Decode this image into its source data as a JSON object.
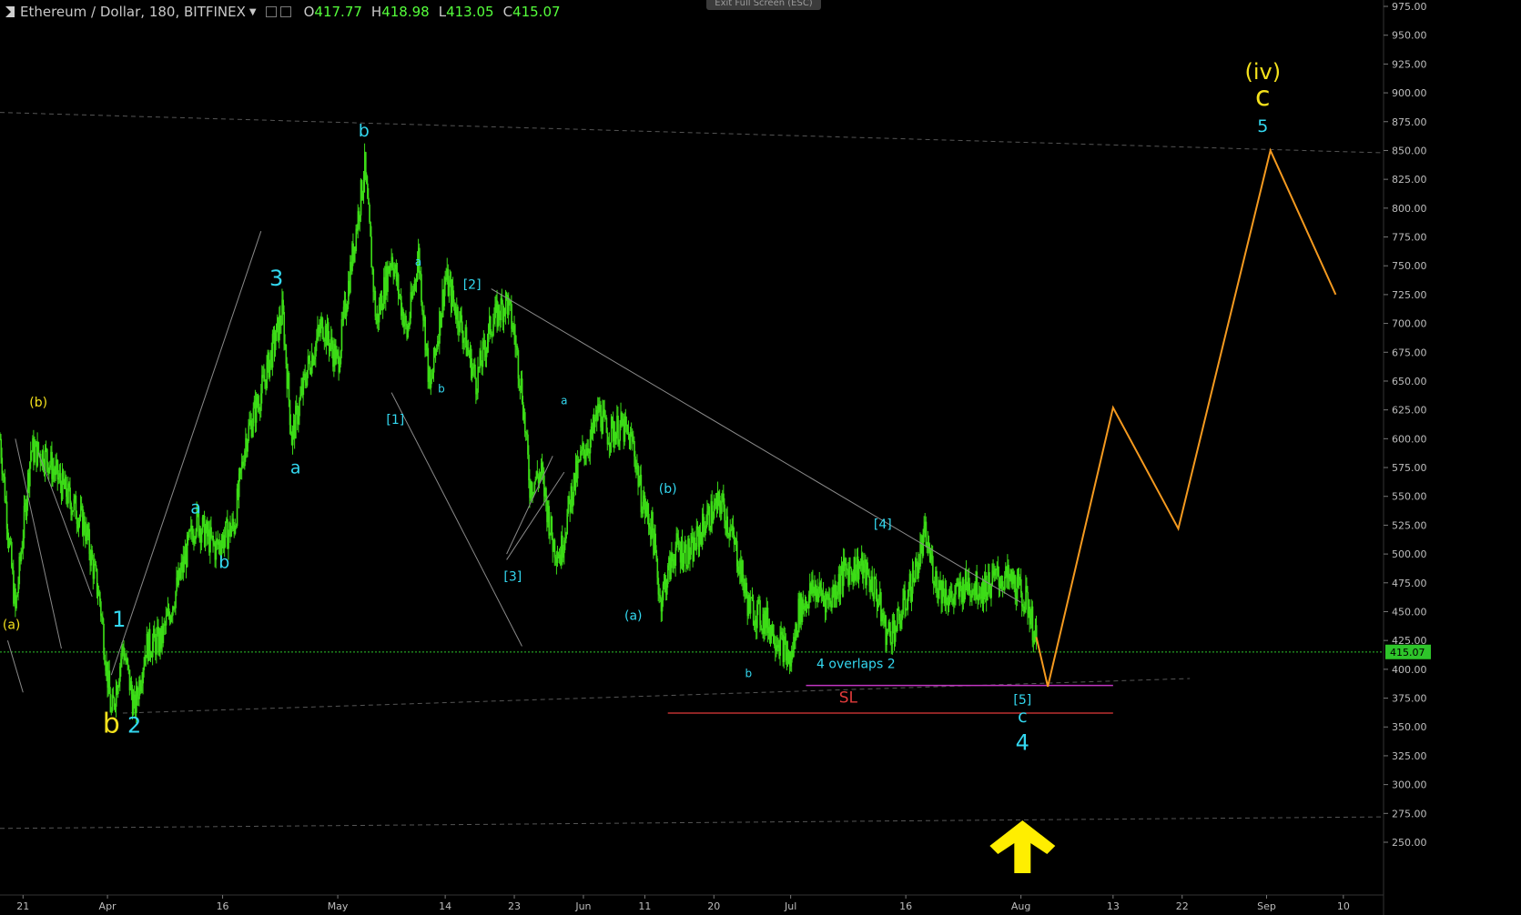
{
  "header": {
    "symbol": "Ethereum / Dollar, 180, BITFINEX",
    "open_label": "O",
    "open": "417.77",
    "high_label": "H",
    "high": "418.98",
    "low_label": "L",
    "low": "413.05",
    "close_label": "C",
    "close": "415.07"
  },
  "exit_fullscreen_label": "Exit Full Screen (ESC)",
  "colors": {
    "background": "#000000",
    "candles": "#3cdc17",
    "wave_cyan": "#33d8f0",
    "wave_yellow": "#f4e11c",
    "projection": "#f59a1f",
    "trendline": "#8a8a8a",
    "stop_loss": "#e23b3b",
    "overlap": "#c236c2",
    "price_line": "#2ec52a"
  },
  "chart_data": {
    "type": "candlestick",
    "y_ticks": [
      "975.00",
      "950.00",
      "925.00",
      "900.00",
      "875.00",
      "850.00",
      "825.00",
      "800.00",
      "775.00",
      "750.00",
      "725.00",
      "700.00",
      "675.00",
      "650.00",
      "625.00",
      "600.00",
      "575.00",
      "550.00",
      "525.00",
      "500.00",
      "475.00",
      "450.00",
      "425.00",
      "400.00",
      "375.00",
      "350.00",
      "325.00",
      "300.00",
      "275.00",
      "250.00"
    ],
    "ylim": [
      250,
      975
    ],
    "x_ticks": [
      "21",
      "Apr",
      "16",
      "May",
      "14",
      "23",
      "Jun",
      "11",
      "20",
      "Jul",
      "16",
      "Aug",
      "13",
      "22",
      "Sep",
      "10"
    ],
    "x_tick_days": [
      0,
      11,
      26,
      41,
      55,
      64,
      73,
      81,
      90,
      100,
      115,
      130,
      142,
      151,
      162,
      172
    ],
    "xlim": [
      -3,
      177
    ],
    "current_price": "415.07",
    "price_path": [
      [
        -3,
        600
      ],
      [
        -1,
        450
      ],
      [
        1,
        590
      ],
      [
        3,
        585
      ],
      [
        5,
        560
      ],
      [
        8,
        525
      ],
      [
        10,
        460
      ],
      [
        11.5,
        360
      ],
      [
        13,
        420
      ],
      [
        14.5,
        365
      ],
      [
        16,
        420
      ],
      [
        18,
        425
      ],
      [
        20,
        470
      ],
      [
        22.5,
        530
      ],
      [
        25,
        505
      ],
      [
        27.5,
        525
      ],
      [
        29,
        600
      ],
      [
        31,
        640
      ],
      [
        33.8,
        710
      ],
      [
        35,
        600
      ],
      [
        37,
        660
      ],
      [
        39,
        700
      ],
      [
        41,
        665
      ],
      [
        42.5,
        740
      ],
      [
        44.5,
        835
      ],
      [
        46,
        700
      ],
      [
        48,
        760
      ],
      [
        50,
        690
      ],
      [
        51.5,
        760
      ],
      [
        53,
        640
      ],
      [
        55,
        740
      ],
      [
        57,
        700
      ],
      [
        59,
        650
      ],
      [
        61,
        700
      ],
      [
        63,
        720
      ],
      [
        64,
        690
      ],
      [
        65,
        640
      ],
      [
        66,
        560
      ],
      [
        67.5,
        570
      ],
      [
        69,
        510
      ],
      [
        70,
        500
      ],
      [
        71.5,
        555
      ],
      [
        73,
        590
      ],
      [
        74,
        600
      ],
      [
        75,
        625
      ],
      [
        76,
        605
      ],
      [
        78,
        610
      ],
      [
        79.5,
        595
      ],
      [
        80.5,
        550
      ],
      [
        82,
        520
      ],
      [
        83,
        460
      ],
      [
        85,
        505
      ],
      [
        87,
        500
      ],
      [
        89,
        530
      ],
      [
        91,
        545
      ],
      [
        93,
        500
      ],
      [
        94.5,
        455
      ],
      [
        97,
        440
      ],
      [
        99,
        420
      ],
      [
        100,
        405
      ],
      [
        101,
        450
      ],
      [
        103,
        470
      ],
      [
        105,
        460
      ],
      [
        107,
        485
      ],
      [
        109,
        490
      ],
      [
        111,
        470
      ],
      [
        112.5,
        430
      ],
      [
        114,
        440
      ],
      [
        116,
        480
      ],
      [
        117.5,
        515
      ],
      [
        119,
        475
      ],
      [
        121,
        460
      ],
      [
        123,
        475
      ],
      [
        125,
        470
      ],
      [
        127,
        480
      ],
      [
        129,
        475
      ],
      [
        131,
        455
      ],
      [
        132,
        420
      ]
    ],
    "projection": [
      [
        132,
        428
      ],
      [
        133.5,
        385
      ],
      [
        142,
        627
      ],
      [
        150.5,
        522
      ],
      [
        162.5,
        850
      ],
      [
        171,
        725
      ]
    ],
    "wave_labels": [
      {
        "text": "(b)",
        "day": 2,
        "price": 628,
        "color": "yellow",
        "size": "s"
      },
      {
        "text": "(a)",
        "day": -1.5,
        "price": 435,
        "color": "yellow",
        "size": "s"
      },
      {
        "text": "b",
        "day": 11.5,
        "price": 345,
        "color": "yellow",
        "size": "xl"
      },
      {
        "text": "1",
        "day": 12.5,
        "price": 437,
        "color": "cyan",
        "size": "l"
      },
      {
        "text": "2",
        "day": 14.5,
        "price": 345,
        "color": "cyan",
        "size": "l"
      },
      {
        "text": "a",
        "day": 22.5,
        "price": 535,
        "color": "cyan",
        "size": "m"
      },
      {
        "text": "b",
        "day": 26.2,
        "price": 488,
        "color": "cyan",
        "size": "m"
      },
      {
        "text": "3",
        "day": 33,
        "price": 733,
        "color": "cyan",
        "size": "l"
      },
      {
        "text": "a",
        "day": 35.5,
        "price": 570,
        "color": "cyan",
        "size": "m"
      },
      {
        "text": "b",
        "day": 44.4,
        "price": 862,
        "color": "cyan",
        "size": "m"
      },
      {
        "text": "a",
        "day": 51.5,
        "price": 750,
        "color": "cyan",
        "size": "xs"
      },
      {
        "text": "[2]",
        "day": 58.5,
        "price": 730,
        "color": "cyan",
        "size": "s"
      },
      {
        "text": "b",
        "day": 54.5,
        "price": 640,
        "color": "cyan",
        "size": "xs"
      },
      {
        "text": "[1]",
        "day": 48.5,
        "price": 613,
        "color": "cyan",
        "size": "s"
      },
      {
        "text": "a",
        "day": 70.5,
        "price": 630,
        "color": "cyan",
        "size": "xs"
      },
      {
        "text": "[3]",
        "day": 63.8,
        "price": 477,
        "color": "cyan",
        "size": "s"
      },
      {
        "text": "(b)",
        "day": 84,
        "price": 553,
        "color": "cyan",
        "size": "s"
      },
      {
        "text": "(a)",
        "day": 79.5,
        "price": 443,
        "color": "cyan",
        "size": "s"
      },
      {
        "text": "b",
        "day": 94.5,
        "price": 393,
        "color": "cyan",
        "size": "xs"
      },
      {
        "text": "[4]",
        "day": 112,
        "price": 522,
        "color": "cyan",
        "size": "s"
      },
      {
        "text": "[5]",
        "day": 130.2,
        "price": 370,
        "color": "cyan",
        "size": "s"
      },
      {
        "text": "c",
        "day": 130.2,
        "price": 354,
        "color": "cyan",
        "size": "m"
      },
      {
        "text": "4",
        "day": 130.2,
        "price": 330,
        "color": "cyan",
        "size": "l"
      },
      {
        "text": "(iv)",
        "day": 161.5,
        "price": 912,
        "color": "yellow",
        "size": "l"
      },
      {
        "text": "c",
        "day": 161.5,
        "price": 889,
        "color": "yellow",
        "size": "xl"
      },
      {
        "text": "5",
        "day": 161.5,
        "price": 866,
        "color": "cyan",
        "size": "m"
      }
    ],
    "annotations": [
      {
        "text": "4 overlaps 2",
        "day": 108.5,
        "price": 401,
        "color": "cyan"
      },
      {
        "text": "SL",
        "day": 107.5,
        "price": 371,
        "color": "red"
      }
    ],
    "stop_loss": {
      "price": 362,
      "from_day": 84,
      "to_day": 142
    },
    "overlap_line": {
      "price": 386,
      "from_day": 102,
      "to_day": 142
    }
  }
}
